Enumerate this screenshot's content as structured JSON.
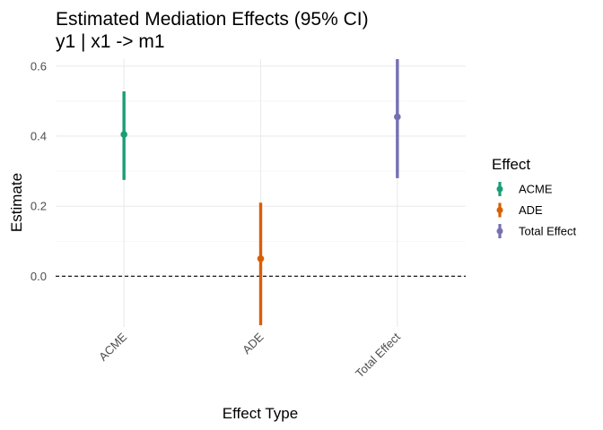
{
  "chart_data": {
    "type": "pointrange",
    "title": "Estimated Mediation Effects (95% CI)",
    "subtitle": "y1 | x1 -> m1",
    "xlabel": "Effect Type",
    "ylabel": "Estimate",
    "categories": [
      "ACME",
      "ADE",
      "Total Effect"
    ],
    "ylim": [
      -0.145,
      0.62
    ],
    "yticks": [
      0.0,
      0.2,
      0.4,
      0.6
    ],
    "ytick_labels": [
      "0.0",
      "0.2",
      "0.4",
      "0.6"
    ],
    "reference_line": {
      "y": 0,
      "style": "dashed",
      "color": "#000000"
    },
    "grid": true,
    "legend": {
      "title": "Effect",
      "position": "right",
      "entries": [
        "ACME",
        "ADE",
        "Total Effect"
      ]
    },
    "series": [
      {
        "name": "ACME",
        "estimate": 0.405,
        "lower": 0.275,
        "upper": 0.528,
        "color": "#1B9E77"
      },
      {
        "name": "ADE",
        "estimate": 0.05,
        "lower": -0.14,
        "upper": 0.21,
        "color": "#D95F02"
      },
      {
        "name": "Total Effect",
        "estimate": 0.455,
        "lower": 0.28,
        "upper": 0.62,
        "color": "#7570B3"
      }
    ]
  }
}
